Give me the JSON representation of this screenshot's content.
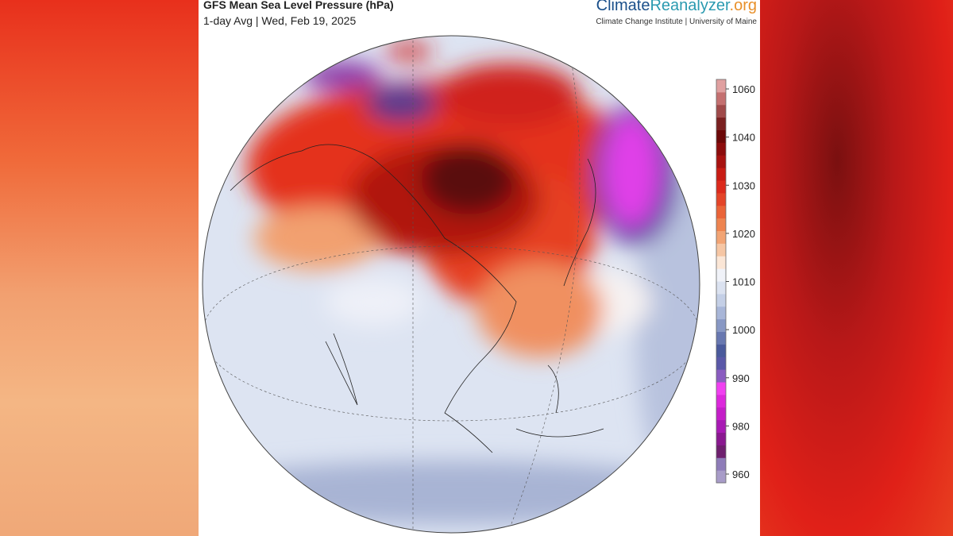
{
  "header": {
    "title": "GFS Mean Sea Level Pressure (hPa)",
    "subtitle": "1-day Avg | Wed, Feb 19, 2025"
  },
  "logo": {
    "parts": [
      "Climate",
      "Reanalyzer",
      ".org"
    ],
    "credit": "Climate Change Institute | University of Maine"
  },
  "colorbar": {
    "ticks": [
      960,
      980,
      990,
      1000,
      1010,
      1020,
      1030,
      1040,
      1060
    ],
    "colors": [
      "#a89cc8",
      "#8e7cb8",
      "#6e1f6e",
      "#8a1890",
      "#a81ab4",
      "#c41ec8",
      "#dc28dc",
      "#f040f0",
      "#8a5cc0",
      "#5a58a8",
      "#4a5a9c",
      "#6878b0",
      "#8898c4",
      "#a8b6d8",
      "#c4cfe6",
      "#dbe2f0",
      "#f0f2f8",
      "#fbe6d6",
      "#f6c6a4",
      "#f2a474",
      "#ee8450",
      "#ea6438",
      "#e44428",
      "#dc2a1c",
      "#c81c14",
      "#a81210",
      "#8c0c0c",
      "#6c0808",
      "#7a2020",
      "#a04a4a",
      "#c47070",
      "#e0a0a0"
    ]
  }
}
